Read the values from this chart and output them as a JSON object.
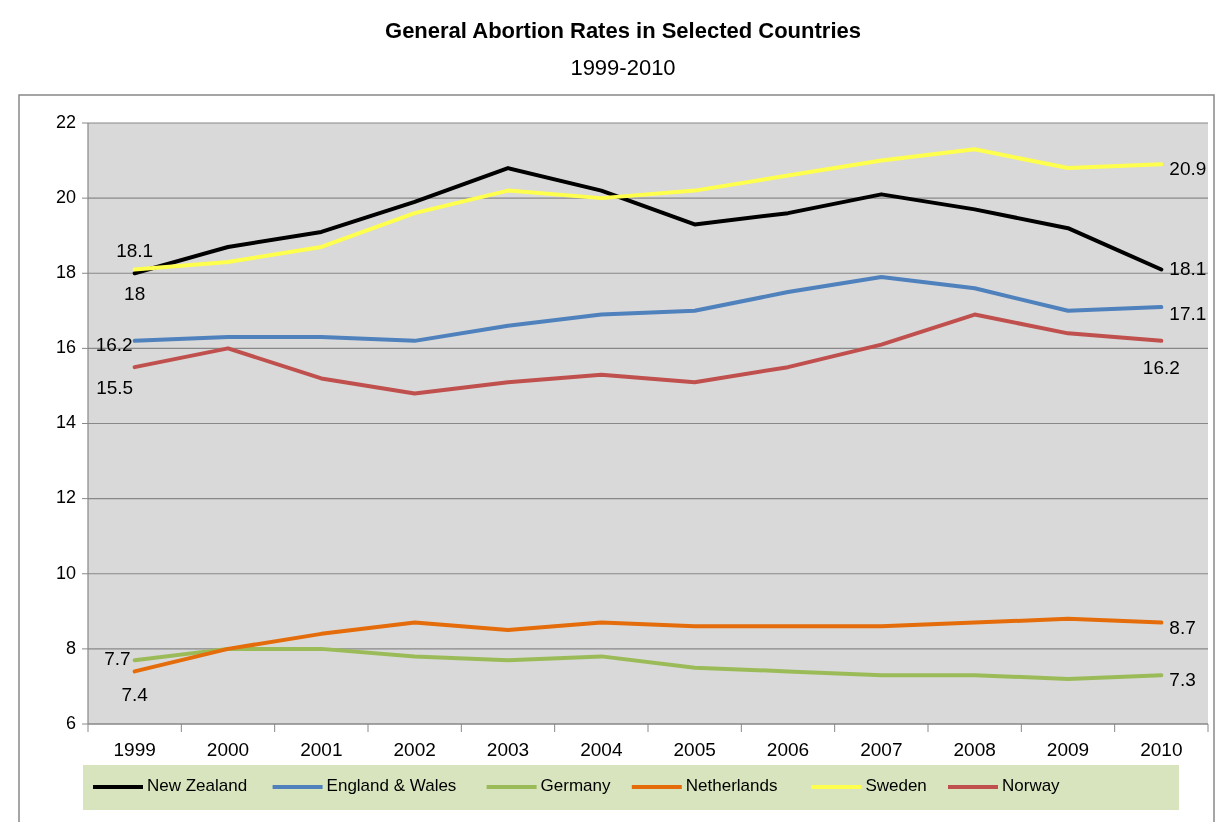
{
  "chart_data": {
    "type": "line",
    "title": "General Abortion Rates in Selected Countries",
    "subtitle": "1999-2010",
    "categories": [
      "1999",
      "2000",
      "2001",
      "2002",
      "2003",
      "2004",
      "2005",
      "2006",
      "2007",
      "2008",
      "2009",
      "2010"
    ],
    "series": [
      {
        "name": "New Zealand",
        "color": "#000000",
        "values": [
          18.0,
          18.7,
          19.1,
          19.9,
          20.8,
          20.2,
          19.3,
          19.6,
          20.1,
          19.7,
          19.2,
          18.1
        ],
        "value_labels": [
          "18",
          null,
          null,
          null,
          null,
          null,
          null,
          null,
          null,
          null,
          null,
          "18.1"
        ]
      },
      {
        "name": "England & Wales",
        "color": "#4f81bd",
        "values": [
          16.2,
          16.3,
          16.3,
          16.2,
          16.6,
          16.9,
          17.0,
          17.5,
          17.9,
          17.6,
          17.0,
          17.1
        ],
        "value_labels": [
          "16.2",
          null,
          null,
          null,
          null,
          null,
          null,
          null,
          null,
          null,
          null,
          "17.1"
        ]
      },
      {
        "name": "Germany",
        "color": "#9bbb59",
        "values": [
          7.7,
          8.0,
          8.0,
          7.8,
          7.7,
          7.8,
          7.5,
          7.4,
          7.3,
          7.3,
          7.2,
          7.3
        ],
        "value_labels": [
          "7.7",
          null,
          null,
          null,
          null,
          null,
          null,
          null,
          null,
          null,
          null,
          "7.3"
        ]
      },
      {
        "name": "Netherlands",
        "color": "#e46c0a",
        "values": [
          7.4,
          8.0,
          8.4,
          8.7,
          8.5,
          8.7,
          8.6,
          8.6,
          8.6,
          8.7,
          8.8,
          8.7
        ],
        "value_labels": [
          "7.4",
          null,
          null,
          null,
          null,
          null,
          null,
          null,
          null,
          null,
          null,
          "8.7"
        ]
      },
      {
        "name": "Sweden",
        "color": "#ffff4d",
        "values": [
          18.1,
          18.3,
          18.7,
          19.6,
          20.2,
          20.0,
          20.2,
          20.6,
          21.0,
          21.3,
          20.8,
          20.9
        ],
        "value_labels": [
          "18.1",
          null,
          null,
          null,
          null,
          null,
          null,
          null,
          null,
          null,
          null,
          "20.9"
        ]
      },
      {
        "name": "Norway",
        "color": "#c0504d",
        "values": [
          15.5,
          16.0,
          15.2,
          14.8,
          15.1,
          15.3,
          15.1,
          15.5,
          16.1,
          16.9,
          16.4,
          16.2
        ],
        "value_labels": [
          "15.5",
          null,
          null,
          null,
          null,
          null,
          null,
          null,
          null,
          null,
          null,
          "16.2"
        ]
      }
    ],
    "ylim": [
      6,
      22
    ],
    "yticks": [
      6,
      8,
      10,
      12,
      14,
      16,
      18,
      20,
      22
    ],
    "grid": "y",
    "legend": "bottom",
    "marker": "none",
    "line_style": "solid"
  }
}
